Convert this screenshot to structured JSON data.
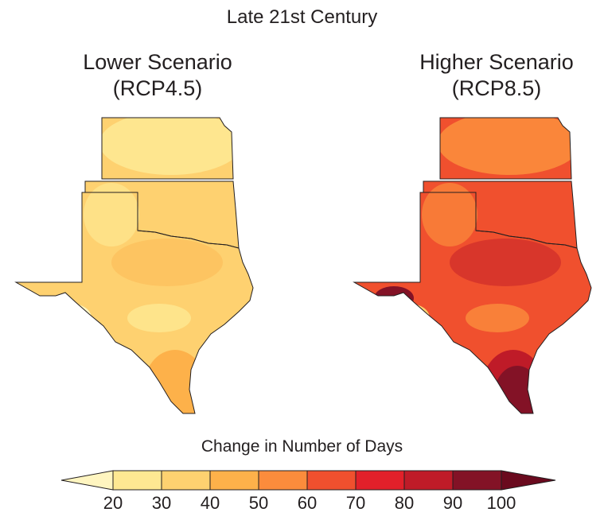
{
  "title": "Late 21st Century",
  "panels": [
    {
      "line1": "Lower Scenario",
      "line2": "(RCP4.5)",
      "dominant_color": "#fed170",
      "secondary_color": "#fee892",
      "hot_color": "#fdb14a"
    },
    {
      "line1": "Higher Scenario",
      "line2": "(RCP8.5)",
      "dominant_color": "#f0502e",
      "secondary_color": "#fb8c3c",
      "hot_color": "#bf1b28"
    }
  ],
  "colorbar": {
    "title": "Change in Number of Days",
    "ticks": [
      "20",
      "30",
      "40",
      "50",
      "60",
      "70",
      "80",
      "90",
      "100"
    ],
    "under_color": "#fff5c0",
    "over_color": "#6a0a1e",
    "bins": [
      "#fee892",
      "#fed170",
      "#fdb14a",
      "#fb8c3c",
      "#f0502e",
      "#e2202a",
      "#bf1b28",
      "#831226"
    ]
  }
}
